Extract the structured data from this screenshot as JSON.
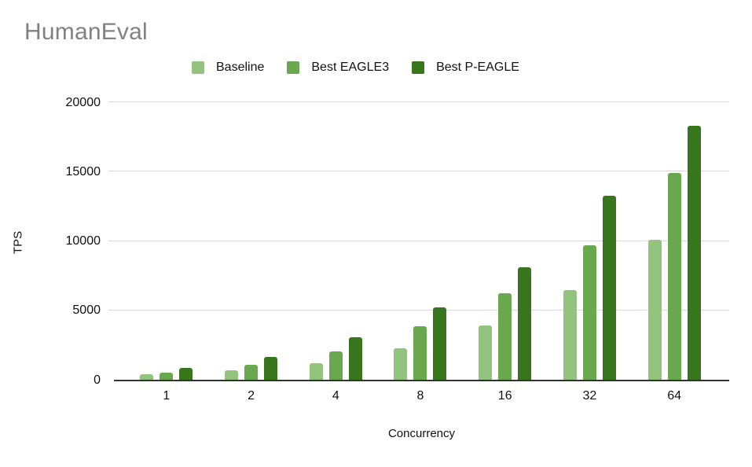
{
  "title": "HumanEval",
  "ui_colors": {
    "title_text": "#818181",
    "axis_text": "#111111",
    "gridline": "#d9d9d9",
    "axis_line": "#333333",
    "background": "#ffffff"
  },
  "chart_data": {
    "type": "bar",
    "title": "HumanEval",
    "xlabel": "Concurrency",
    "ylabel": "TPS",
    "categories": [
      "1",
      "2",
      "4",
      "8",
      "16",
      "32",
      "64"
    ],
    "series": [
      {
        "name": "Baseline",
        "color": "#93c47d",
        "values": [
          400,
          700,
          1200,
          2250,
          3900,
          6450,
          10100
        ]
      },
      {
        "name": "Best EAGLE3",
        "color": "#6aa84f",
        "values": [
          500,
          1050,
          2050,
          3850,
          6250,
          9700,
          14900
        ]
      },
      {
        "name": "Best P-EAGLE",
        "color": "#38761d",
        "values": [
          870,
          1650,
          3050,
          5200,
          8100,
          13250,
          18300
        ]
      }
    ],
    "ylim": [
      0,
      20000
    ],
    "yticks": [
      0,
      5000,
      10000,
      15000,
      20000
    ],
    "grid": true,
    "legend_position": "top"
  }
}
